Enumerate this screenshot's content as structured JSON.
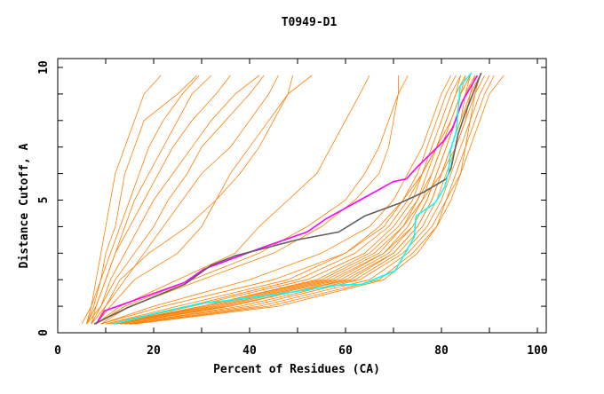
{
  "chart_data": {
    "type": "line",
    "title": "T0949-D1",
    "xlabel": "Percent of Residues (CA)",
    "ylabel": "Distance Cutoff, A",
    "xlim": [
      0,
      100
    ],
    "ylim": [
      0,
      10
    ],
    "x_ticks": [
      "0",
      "20",
      "40",
      "60",
      "80",
      "100"
    ],
    "y_ticks": [
      "0",
      "5",
      "10"
    ],
    "grid": false,
    "colors": {
      "models": "#ff7f00",
      "magenta": "#ff00ff",
      "gray": "#606060",
      "cyan": "#00ffff"
    },
    "y_levels": [
      0.33,
      1,
      2,
      3,
      4,
      5,
      6,
      7,
      8,
      9,
      9.7
    ],
    "model_series_x": [
      [
        6,
        7,
        8,
        9,
        10,
        11,
        12,
        14,
        16,
        18,
        21.5
      ],
      [
        6,
        7.5,
        9,
        10,
        12,
        13,
        14,
        16,
        18,
        25,
        29
      ],
      [
        5,
        7,
        9,
        11,
        13,
        15,
        17,
        19,
        22,
        26,
        29.5
      ],
      [
        7,
        8,
        10,
        12,
        14,
        16,
        19,
        22,
        25,
        28,
        32
      ],
      [
        6,
        8,
        10,
        12,
        15,
        18,
        21,
        24,
        28,
        33,
        36
      ],
      [
        7,
        9,
        11,
        14,
        17,
        20,
        24,
        28,
        32,
        37,
        42
      ],
      [
        6,
        9,
        12,
        16,
        20,
        23,
        27,
        30,
        35,
        40,
        43
      ],
      [
        7,
        10,
        14,
        18,
        22,
        26,
        30,
        36,
        40,
        44,
        46
      ],
      [
        8,
        10,
        13,
        19,
        27,
        33,
        38,
        42,
        45,
        48,
        49
      ],
      [
        8,
        11,
        16,
        25,
        30,
        33,
        36,
        40,
        44,
        48,
        53
      ],
      [
        8,
        13,
        25,
        37,
        42,
        48,
        54,
        57,
        60,
        63,
        65
      ],
      [
        9,
        15,
        30,
        45,
        55,
        62,
        67,
        69,
        70,
        71,
        71
      ],
      [
        8,
        14,
        28,
        42,
        52,
        60,
        64,
        67,
        69,
        71,
        73
      ],
      [
        9,
        20,
        40,
        55,
        65,
        70,
        73,
        76,
        78,
        80,
        82
      ],
      [
        10,
        25,
        48,
        60,
        68,
        72,
        75,
        77,
        79,
        81,
        83
      ],
      [
        11,
        28,
        52,
        64,
        70,
        74,
        76,
        78,
        80,
        82,
        84
      ],
      [
        12,
        30,
        55,
        66,
        72,
        75,
        77,
        79,
        81,
        83,
        85
      ],
      [
        12,
        32,
        57,
        68,
        73,
        76,
        78,
        80,
        82,
        84,
        86
      ],
      [
        13,
        34,
        59,
        69,
        74,
        77,
        79,
        81,
        83,
        85,
        87
      ],
      [
        13,
        36,
        60,
        70,
        75,
        78,
        80,
        82,
        84,
        86,
        88
      ],
      [
        14,
        38,
        62,
        71,
        76,
        79,
        81,
        83,
        85,
        87,
        89
      ],
      [
        14,
        40,
        63,
        72,
        77,
        80,
        82,
        84,
        86,
        88,
        90
      ],
      [
        15,
        42,
        65,
        73,
        78,
        81,
        83,
        85,
        87,
        89,
        91
      ],
      [
        15,
        44,
        67,
        74,
        79,
        81,
        84,
        86,
        88,
        90,
        93
      ],
      [
        10,
        27,
        50,
        62,
        69,
        73,
        76,
        79,
        82,
        84,
        86
      ],
      [
        11,
        30,
        54,
        65,
        71,
        75,
        78,
        80,
        83,
        85,
        87
      ],
      [
        12,
        33,
        58,
        68,
        74,
        77,
        79,
        81,
        83,
        84,
        85
      ],
      [
        13,
        35,
        61,
        70,
        75,
        78,
        80,
        82,
        84,
        85,
        86
      ],
      [
        9,
        22,
        45,
        60,
        67,
        72,
        76,
        79,
        81,
        83,
        84
      ],
      [
        16,
        46,
        68,
        75,
        79,
        82,
        84,
        85,
        86,
        87,
        88
      ],
      [
        12,
        31,
        56,
        67,
        72,
        76,
        80,
        83,
        85,
        86,
        87
      ]
    ],
    "highlight_series": [
      {
        "name": "magenta",
        "points": [
          [
            8,
            0.33
          ],
          [
            9.8,
            0.83
          ],
          [
            26.5,
            1.9
          ],
          [
            30.5,
            2.4
          ],
          [
            42.5,
            3.2
          ],
          [
            52,
            3.8
          ],
          [
            56,
            4.3
          ],
          [
            62,
            4.9
          ],
          [
            70,
            5.7
          ],
          [
            72.7,
            5.8
          ],
          [
            74.7,
            6.2
          ],
          [
            80.3,
            7.2
          ],
          [
            82.3,
            7.7
          ],
          [
            84.3,
            8.7
          ],
          [
            87.5,
            9.7
          ]
        ]
      },
      {
        "name": "gray",
        "points": [
          [
            7.6,
            0.33
          ],
          [
            14.5,
            0.94
          ],
          [
            26.5,
            1.83
          ],
          [
            32,
            2.55
          ],
          [
            37,
            2.9
          ],
          [
            49.8,
            3.5
          ],
          [
            58.6,
            3.8
          ],
          [
            64,
            4.4
          ],
          [
            71.5,
            4.9
          ],
          [
            76.3,
            5.3
          ],
          [
            81,
            5.8
          ],
          [
            82,
            6.2
          ],
          [
            83.5,
            7.5
          ],
          [
            85,
            8.3
          ],
          [
            88.3,
            9.8
          ]
        ]
      },
      {
        "name": "cyan",
        "points": [
          [
            11.6,
            0.33
          ],
          [
            20,
            0.72
          ],
          [
            29.7,
            1.1
          ],
          [
            44,
            1.4
          ],
          [
            58.6,
            1.8
          ],
          [
            63.5,
            1.83
          ],
          [
            70.3,
            2.33
          ],
          [
            71.9,
            2.83
          ],
          [
            74.3,
            3.6
          ],
          [
            74.7,
            4.4
          ],
          [
            78.7,
            4.9
          ],
          [
            80.7,
            5.5
          ],
          [
            81.5,
            6.06
          ],
          [
            81.9,
            6.9
          ],
          [
            83.1,
            7.6
          ],
          [
            83.9,
            9.3
          ],
          [
            86.3,
            9.8
          ]
        ]
      }
    ]
  }
}
